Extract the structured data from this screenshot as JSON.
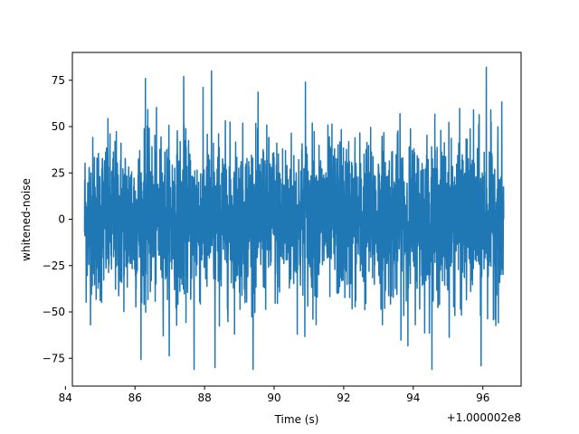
{
  "chart_data": {
    "type": "line",
    "title": "",
    "xlabel": "Time (s)",
    "ylabel": "whitened-noise",
    "x_offset_label": "+1.000002e8",
    "xlim": [
      84.2,
      97.1
    ],
    "ylim": [
      -90,
      90
    ],
    "x_ticks": [
      84,
      86,
      88,
      90,
      92,
      94,
      96
    ],
    "x_tick_labels": [
      "84",
      "86",
      "88",
      "90",
      "92",
      "94",
      "96"
    ],
    "y_ticks": [
      -75,
      -50,
      -25,
      0,
      25,
      50,
      75
    ],
    "y_tick_labels": [
      "−75",
      "−50",
      "−25",
      "0",
      "25",
      "50",
      "75"
    ],
    "grid": false,
    "series": [
      {
        "color": "#1f77b4",
        "x_start": 84.55,
        "x_end": 96.6,
        "y_min": -81,
        "y_max": 82,
        "notable_points": [
          {
            "x": 86.3,
            "y": 76
          },
          {
            "x": 87.4,
            "y": 77
          },
          {
            "x": 88.2,
            "y": 80
          },
          {
            "x": 87.7,
            "y": -81
          },
          {
            "x": 88.3,
            "y": -80
          },
          {
            "x": 90.9,
            "y": 74
          },
          {
            "x": 95.95,
            "y": -79
          },
          {
            "x": 96.1,
            "y": 82
          }
        ]
      }
    ]
  }
}
